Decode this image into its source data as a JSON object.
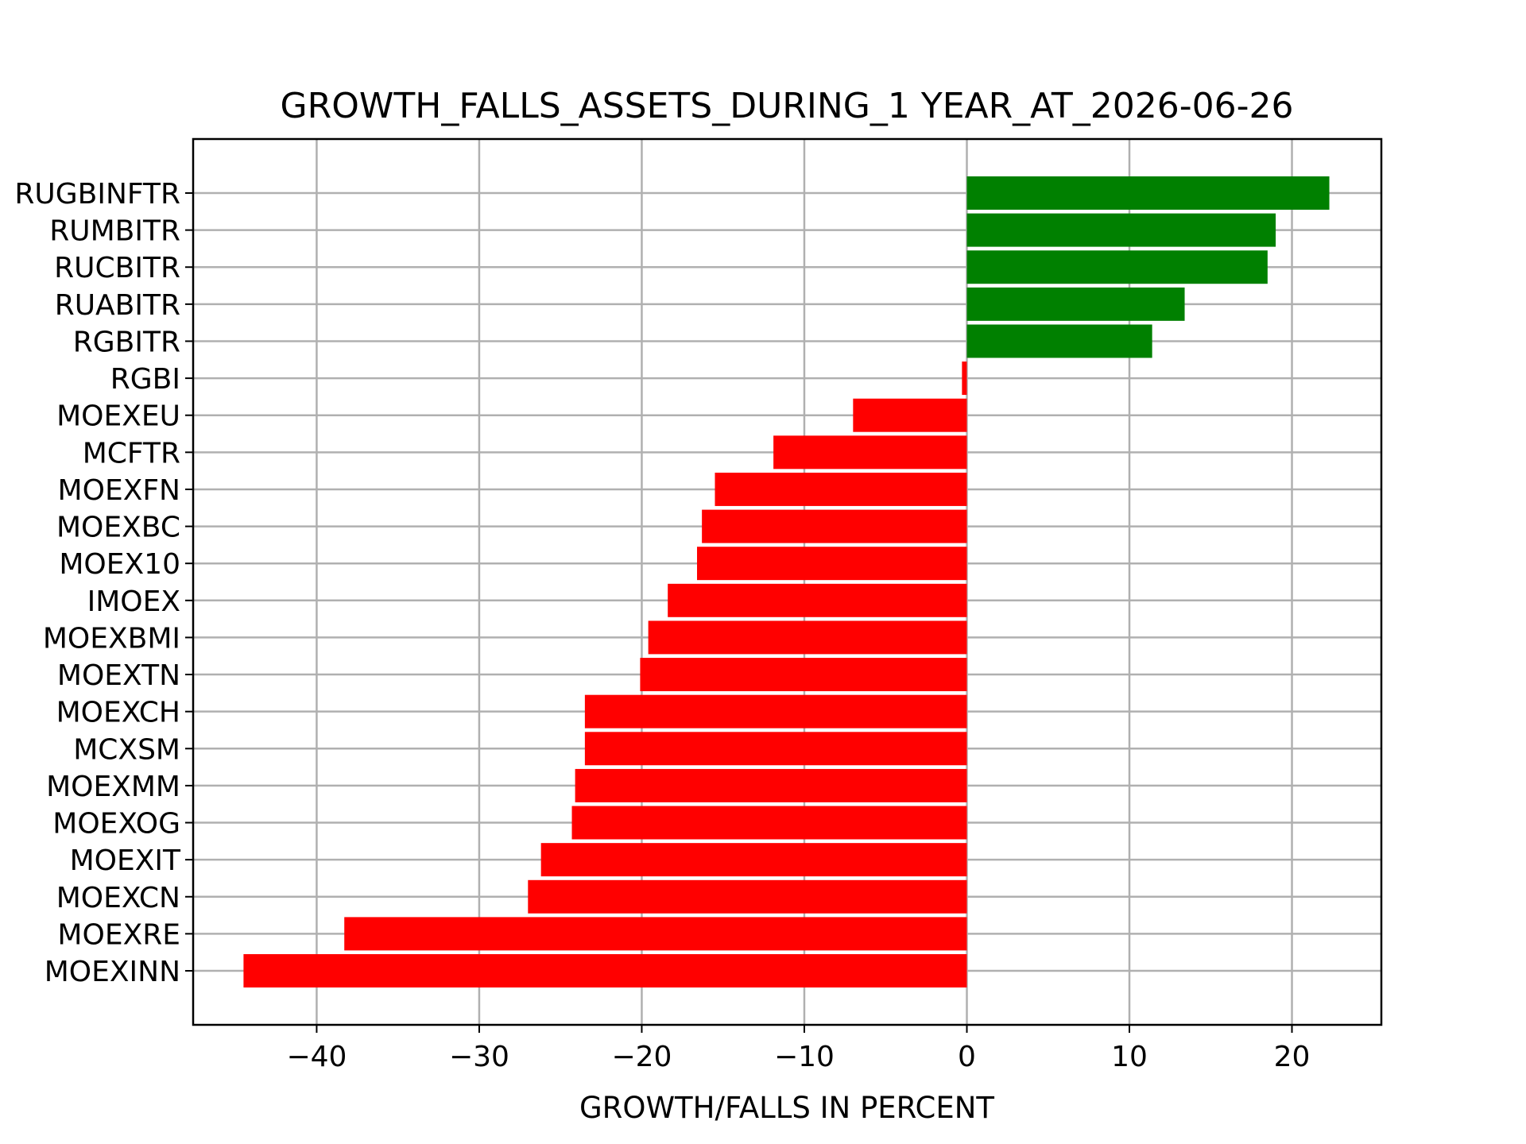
{
  "chart_data": {
    "type": "bar",
    "orientation": "horizontal",
    "title": "GROWTH_FALLS_ASSETS_DURING_1 YEAR_AT_2026-06-26",
    "xlabel": "GROWTH/FALLS IN PERCENT",
    "ylabel": "",
    "xlim": [
      -47.6,
      25.5
    ],
    "xticks": [
      -40,
      -30,
      -20,
      -10,
      0,
      10,
      20
    ],
    "xtick_labels": [
      "−40",
      "−30",
      "−20",
      "−10",
      "0",
      "10",
      "20"
    ],
    "grid": true,
    "legend": "none",
    "colors": {
      "positive": "#008000",
      "negative": "#ff0000"
    },
    "categories": [
      "RUGBINFTR",
      "RUMBITR",
      "RUCBITR",
      "RUABITR",
      "RGBITR",
      "RGBI",
      "MOEXEU",
      "MCFTR",
      "MOEXFN",
      "MOEXBC",
      "MOEX10",
      "IMOEX",
      "MOEXBMI",
      "MOEXTN",
      "MOEXCH",
      "MCXSM",
      "MOEXMM",
      "MOEXOG",
      "MOEXIT",
      "MOEXCN",
      "MOEXRE",
      "MOEXINN"
    ],
    "values": [
      22.3,
      19.0,
      18.5,
      13.4,
      11.4,
      -0.3,
      -7.0,
      -11.9,
      -15.5,
      -16.3,
      -16.6,
      -18.4,
      -19.6,
      -20.1,
      -23.5,
      -23.5,
      -24.1,
      -24.3,
      -26.2,
      -27.0,
      -38.3,
      -44.5
    ]
  }
}
